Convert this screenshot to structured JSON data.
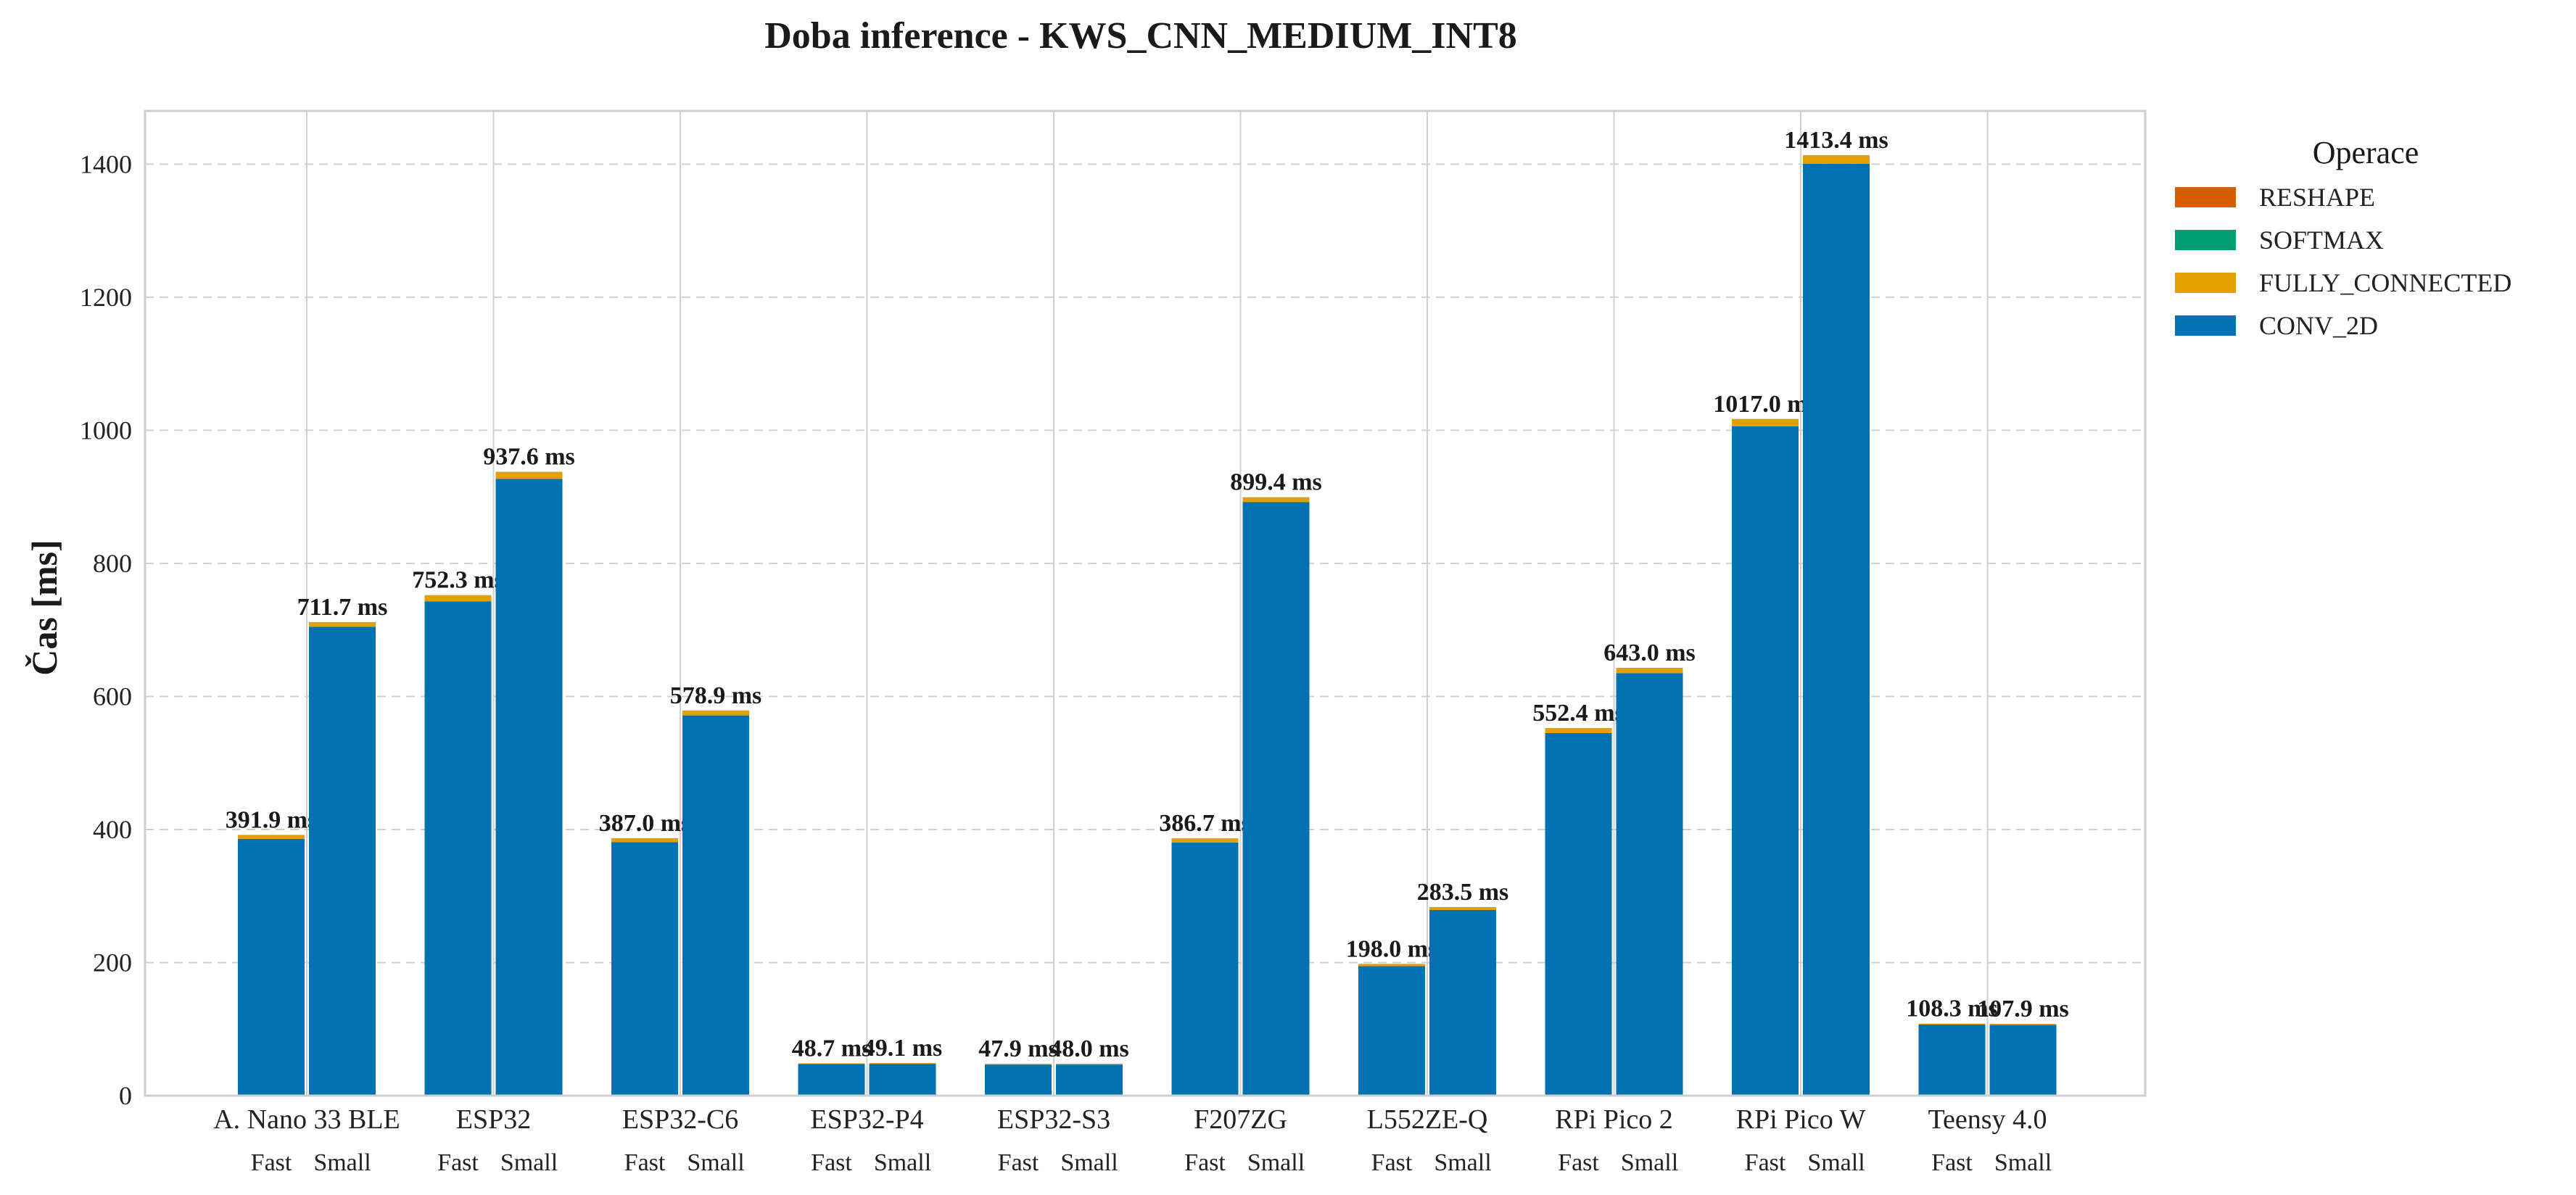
{
  "chart_data": {
    "type": "bar",
    "stacked": true,
    "title": "Doba inference - KWS_CNN_MEDIUM_INT8",
    "xlabel": "",
    "ylabel": "Čas [ms]",
    "ylim": [
      0,
      1480
    ],
    "yticks": [
      0,
      200,
      400,
      600,
      800,
      1000,
      1200,
      1400
    ],
    "grid": true,
    "legend": {
      "title": "Operace",
      "placement": "outside-right-top"
    },
    "categories": [
      "A. Nano 33 BLE",
      "ESP32",
      "ESP32-C6",
      "ESP32-P4",
      "ESP32-S3",
      "F207ZG",
      "L552ZE-Q",
      "RPi Pico 2",
      "RPi Pico W",
      "Teensy 4.0"
    ],
    "variants": [
      "Fast",
      "Small"
    ],
    "series": [
      {
        "name": "CONV_2D",
        "color": "#0072B2",
        "values": [
          [
            386.0,
            704.7
          ],
          [
            743.0,
            927.0
          ],
          [
            381.0,
            571.5
          ],
          [
            47.4,
            47.8
          ],
          [
            46.6,
            46.7
          ],
          [
            380.5,
            892.0
          ],
          [
            194.5,
            279.0
          ],
          [
            545.0,
            635.0
          ],
          [
            1006.0,
            1400.5
          ],
          [
            106.8,
            106.4
          ]
        ]
      },
      {
        "name": "FULLY_CONNECTED",
        "color": "#E69F00",
        "values": [
          [
            5.5,
            6.6
          ],
          [
            8.9,
            10.2
          ],
          [
            5.6,
            7.0
          ],
          [
            1.2,
            1.2
          ],
          [
            1.2,
            1.2
          ],
          [
            5.8,
            7.0
          ],
          [
            3.2,
            4.2
          ],
          [
            7.0,
            7.6
          ],
          [
            10.6,
            12.5
          ],
          [
            1.4,
            1.4
          ]
        ]
      },
      {
        "name": "SOFTMAX",
        "color": "#009E73",
        "values": [
          [
            0.2,
            0.2
          ],
          [
            0.2,
            0.2
          ],
          [
            0.2,
            0.2
          ],
          [
            0.05,
            0.05
          ],
          [
            0.05,
            0.05
          ],
          [
            0.2,
            0.2
          ],
          [
            0.15,
            0.15
          ],
          [
            0.2,
            0.2
          ],
          [
            0.2,
            0.2
          ],
          [
            0.05,
            0.05
          ]
        ]
      },
      {
        "name": "RESHAPE",
        "color": "#D55E00",
        "values": [
          [
            0.2,
            0.2
          ],
          [
            0.2,
            0.2
          ],
          [
            0.2,
            0.2
          ],
          [
            0.05,
            0.05
          ],
          [
            0.05,
            0.05
          ],
          [
            0.2,
            0.2
          ],
          [
            0.15,
            0.15
          ],
          [
            0.2,
            0.2
          ],
          [
            0.2,
            0.2
          ],
          [
            0.05,
            0.05
          ]
        ]
      }
    ],
    "totals": [
      [
        391.9,
        711.7
      ],
      [
        752.3,
        937.6
      ],
      [
        387.0,
        578.9
      ],
      [
        48.7,
        49.1
      ],
      [
        47.9,
        48.0
      ],
      [
        386.7,
        899.4
      ],
      [
        198.0,
        283.5
      ],
      [
        552.4,
        643.0
      ],
      [
        1017.0,
        1413.4
      ],
      [
        108.3,
        107.9
      ]
    ],
    "total_labels": [
      [
        "391.9 ms",
        "711.7 ms"
      ],
      [
        "752.3 ms",
        "937.6 ms"
      ],
      [
        "387.0 ms",
        "578.9 ms"
      ],
      [
        "48.7 ms",
        "49.1 ms"
      ],
      [
        "47.9 ms",
        "48.0 ms"
      ],
      [
        "386.7 ms",
        "899.4 ms"
      ],
      [
        "198.0 ms",
        "283.5 ms"
      ],
      [
        "552.4 ms",
        "643.0 ms"
      ],
      [
        "1017.0 ms",
        "1413.4 ms"
      ],
      [
        "108.3 ms",
        "107.9 ms"
      ]
    ]
  }
}
